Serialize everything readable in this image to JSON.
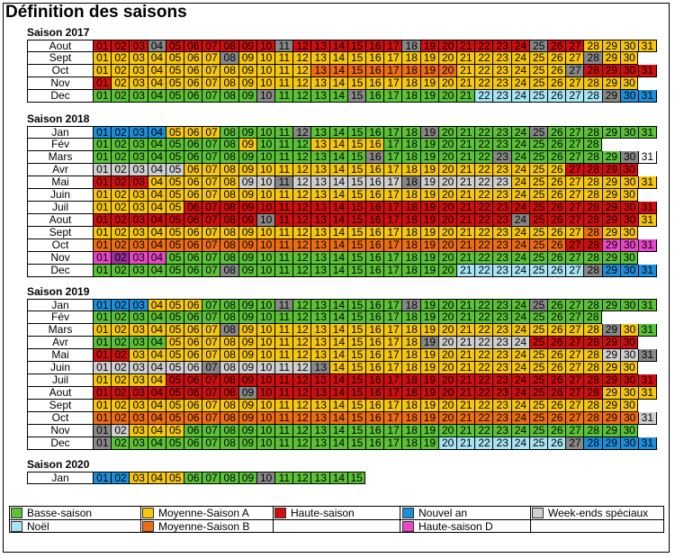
{
  "title": "Définition des saisons",
  "colors": {
    "B": "#5bc236",
    "A": "#f7c70a",
    "H": "#d10e0e",
    "N": "#1b8fdb",
    "S": "#cfcfcf",
    "G": "#888888",
    "W": "#ffffff",
    "C": "#a7e4f4",
    "O": "#ef6c10",
    "D": "#e846c9",
    "P": "#9b2f9e"
  },
  "legend": [
    {
      "name": "Basse-saison",
      "color": "#5bc236"
    },
    {
      "name": "Noël",
      "color": "#a7e4f4"
    },
    {
      "name": "Moyenne-Saison A",
      "color": "#f7c70a"
    },
    {
      "name": "Moyenne-Saison B",
      "color": "#ef6c10"
    },
    {
      "name": "Haute-saison",
      "color": "#d10e0e"
    },
    {
      "name": "Nouvel an",
      "color": "#1b8fdb"
    },
    {
      "name": "Haute-saison D",
      "color": "#e846c9"
    },
    {
      "name": "Week-ends spéciaux",
      "color": "#cfcfcf"
    }
  ],
  "seasons": [
    {
      "title": "Saison 2017",
      "months": [
        {
          "name": "Aout",
          "days": 31,
          "codes": "HHHGHHHHHHGHHHHHHGHHHHHHGHHAAAA"
        },
        {
          "name": "Sept",
          "days": 30,
          "codes": "AAAAAAAGAAAAAAAAAAAAAAAAAAAGAA"
        },
        {
          "name": "Oct",
          "days": 31,
          "codes": "AAAAAAAAAAAAOOOOOOOOAAAAAAGHHHH"
        },
        {
          "name": "Nov",
          "days": 30,
          "codes": "HAAAAAAAAAAAAAAAAAAAAAAAAAAAAA"
        },
        {
          "name": "Dec",
          "days": 31,
          "codes": "BBBBBBBBBGBBBBGBBBBBBCCCCCCCGNN"
        }
      ]
    },
    {
      "title": "Saison 2018",
      "months": [
        {
          "name": "Jan",
          "days": 31,
          "codes": "NNNNAAABBBBGBBBBBBGBBBBBGBBBBBB"
        },
        {
          "name": "Fév",
          "days": 28,
          "codes": "BBBBBBBBABBBAAAABBBBBBBBBBBB"
        },
        {
          "name": "Mars",
          "days": 31,
          "codes": "BBBBBBBBBBBBBBBGBBBBBBGBBBBBBGW"
        },
        {
          "name": "Avr",
          "days": 30,
          "codes": "SSSSSAAAAAAAAAAAAAAAAAAAAAHHHH"
        },
        {
          "name": "Mai",
          "days": 31,
          "codes": "HHHAAAAASSGSSSSSSGSSSSSAAAAAAAA"
        },
        {
          "name": "Juin",
          "days": 30,
          "codes": "AAAAAAAAAAAAAAAAAAAAAAAAAAAAAA"
        },
        {
          "name": "Juil",
          "days": 31,
          "codes": "AAAAAHHHHHHHHHHHHHHHHHHHHHHHHHH"
        },
        {
          "name": "Aout",
          "days": 31,
          "codes": "HHHHHHHHHGHHHHHHHHHHHHHGHHHHHHA"
        },
        {
          "name": "Sept",
          "days": 30,
          "codes": "AAAAAAAAAAAAAAAAAAAAAAAAAAAOAA"
        },
        {
          "name": "Oct",
          "days": 31,
          "codes": "OOOOOOOOOOOOOOOOOOOOOOOOOOHHDDD"
        },
        {
          "name": "Nov",
          "days": 30,
          "codes": "DPDDBBBBBBBBBBBBBBBBBBBBBBBBBB"
        },
        {
          "name": "Dec",
          "days": 31,
          "codes": "BBBBBBBGBBBBBBBBBBBBCCCCCCCGNNN"
        }
      ]
    },
    {
      "title": "Saison 2019",
      "months": [
        {
          "name": "Jan",
          "days": 31,
          "codes": "NNNAAABBBBGBBBBBBGBBBBBBGBBBBBB"
        },
        {
          "name": "Fév",
          "days": 28,
          "codes": "BBBBBBBBBBBBBBBBBBBBBBBBBBBB"
        },
        {
          "name": "Mars",
          "days": 31,
          "codes": "AAAAAAAGAAAAAAAAAAAAAAAAAAAAGAB"
        },
        {
          "name": "Avr",
          "days": 30,
          "codes": "BBBBAAAAAAAAAAAAAAGSSSSSHHHHHH"
        },
        {
          "name": "Mai",
          "days": 31,
          "codes": "HHAAAAAAAAAAAAAAAAAAAAAAAAAASSG"
        },
        {
          "name": "Juin",
          "days": 30,
          "codes": "SSSSSSGSSSSSGAAAAAAAAAAAAAAAAA"
        },
        {
          "name": "Juil",
          "days": 31,
          "codes": "AAAAHHHHHHHHHHHHHHHHHHHHHHHHHHH"
        },
        {
          "name": "Aout",
          "days": 31,
          "codes": "HHHHHHHHGHHHHHHHHHHHHHHHHHHHAAA"
        },
        {
          "name": "Sept",
          "days": 30,
          "codes": "AAAAAAAAAAAAAAAAAAAAAAAAAAAAAA"
        },
        {
          "name": "Oct",
          "days": 31,
          "codes": "OOOOOOOOOOOOOOOOOOOOOOOOOOOOOOS"
        },
        {
          "name": "Nov",
          "days": 30,
          "codes": "GSAAABBBBBBBBBBBBBBBBBBBBBBBBB"
        },
        {
          "name": "Dec",
          "days": 31,
          "codes": "GBBBBBBBBBBBBBBBBBBCCCCCCCGNNNN"
        }
      ]
    },
    {
      "title": "Saison 2020",
      "months": [
        {
          "name": "Jan",
          "days": 15,
          "codes": "NNAAABBBBGBBBBB"
        }
      ]
    }
  ]
}
